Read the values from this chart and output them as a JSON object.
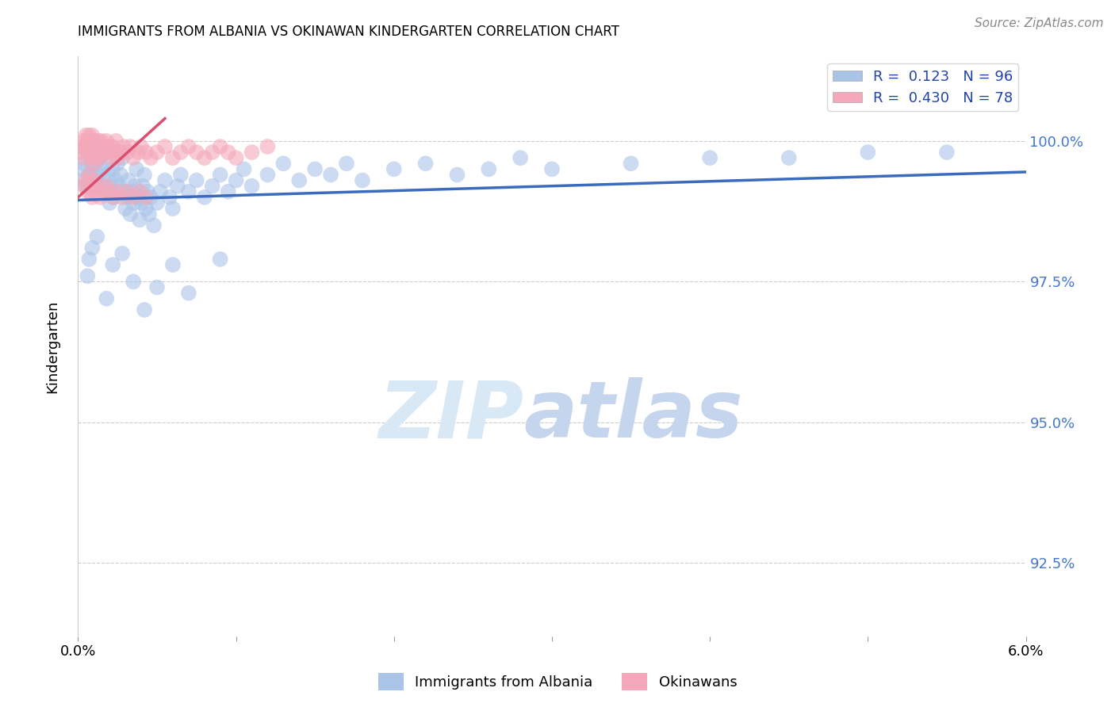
{
  "title": "IMMIGRANTS FROM ALBANIA VS OKINAWAN KINDERGARTEN CORRELATION CHART",
  "source": "Source: ZipAtlas.com",
  "ylabel": "Kindergarten",
  "y_ticks": [
    92.5,
    95.0,
    97.5,
    100.0
  ],
  "y_tick_labels": [
    "92.5%",
    "95.0%",
    "97.5%",
    "100.0%"
  ],
  "x_range": [
    0.0,
    6.0
  ],
  "y_range": [
    91.2,
    101.5
  ],
  "color_albania": "#aac4e8",
  "color_okinawa": "#f4a8ba",
  "color_line_albania": "#3a6bbf",
  "color_line_okinawa": "#d94f70",
  "watermark_zip": "ZIP",
  "watermark_atlas": "atlas",
  "watermark_color_zip": "#d5e4f5",
  "watermark_color_atlas": "#c8d8f0",
  "background_color": "#ffffff",
  "legend_label_albania": "Immigrants from Albania",
  "legend_label_okinawa": "Okinawans",
  "albania_x": [
    0.02,
    0.03,
    0.04,
    0.05,
    0.06,
    0.07,
    0.08,
    0.08,
    0.09,
    0.1,
    0.1,
    0.11,
    0.12,
    0.13,
    0.14,
    0.15,
    0.15,
    0.16,
    0.17,
    0.18,
    0.19,
    0.2,
    0.21,
    0.22,
    0.23,
    0.24,
    0.25,
    0.26,
    0.27,
    0.28,
    0.29,
    0.3,
    0.31,
    0.32,
    0.33,
    0.34,
    0.35,
    0.36,
    0.37,
    0.38,
    0.39,
    0.4,
    0.41,
    0.42,
    0.43,
    0.44,
    0.45,
    0.46,
    0.48,
    0.5,
    0.52,
    0.55,
    0.58,
    0.6,
    0.63,
    0.65,
    0.7,
    0.75,
    0.8,
    0.85,
    0.9,
    0.95,
    1.0,
    1.05,
    1.1,
    1.2,
    1.3,
    1.4,
    1.5,
    1.6,
    1.7,
    1.8,
    2.0,
    2.2,
    2.4,
    2.6,
    2.8,
    3.0,
    3.5,
    4.0,
    4.5,
    5.0,
    5.5,
    0.06,
    0.07,
    0.09,
    0.12,
    0.18,
    0.22,
    0.28,
    0.35,
    0.42,
    0.5,
    0.6,
    0.7,
    0.9
  ],
  "albania_y": [
    99.3,
    99.5,
    99.6,
    99.2,
    99.8,
    99.4,
    99.1,
    99.7,
    99.5,
    99.3,
    99.9,
    99.6,
    99.4,
    99.7,
    99.2,
    99.5,
    99.8,
    99.3,
    99.6,
    99.1,
    99.4,
    98.9,
    99.2,
    99.5,
    99.0,
    99.3,
    99.6,
    99.2,
    99.4,
    99.7,
    99.1,
    98.8,
    99.0,
    99.3,
    98.7,
    99.1,
    98.9,
    99.2,
    99.5,
    99.0,
    98.6,
    98.9,
    99.2,
    99.4,
    98.8,
    99.1,
    98.7,
    99.0,
    98.5,
    98.9,
    99.1,
    99.3,
    99.0,
    98.8,
    99.2,
    99.4,
    99.1,
    99.3,
    99.0,
    99.2,
    99.4,
    99.1,
    99.3,
    99.5,
    99.2,
    99.4,
    99.6,
    99.3,
    99.5,
    99.4,
    99.6,
    99.3,
    99.5,
    99.6,
    99.4,
    99.5,
    99.7,
    99.5,
    99.6,
    99.7,
    99.7,
    99.8,
    99.8,
    97.6,
    97.9,
    98.1,
    98.3,
    97.2,
    97.8,
    98.0,
    97.5,
    97.0,
    97.4,
    97.8,
    97.3,
    97.9
  ],
  "okinawa_x": [
    0.02,
    0.03,
    0.04,
    0.04,
    0.05,
    0.05,
    0.06,
    0.06,
    0.07,
    0.07,
    0.08,
    0.08,
    0.09,
    0.09,
    0.1,
    0.1,
    0.11,
    0.11,
    0.12,
    0.12,
    0.13,
    0.13,
    0.14,
    0.15,
    0.15,
    0.16,
    0.17,
    0.18,
    0.19,
    0.2,
    0.21,
    0.22,
    0.23,
    0.24,
    0.25,
    0.27,
    0.29,
    0.31,
    0.33,
    0.35,
    0.38,
    0.4,
    0.43,
    0.46,
    0.5,
    0.55,
    0.6,
    0.65,
    0.7,
    0.75,
    0.8,
    0.85,
    0.9,
    0.95,
    1.0,
    1.1,
    1.2,
    0.04,
    0.05,
    0.06,
    0.07,
    0.08,
    0.09,
    0.1,
    0.11,
    0.12,
    0.14,
    0.16,
    0.18,
    0.2,
    0.22,
    0.25,
    0.28,
    0.31,
    0.35,
    0.39,
    0.43
  ],
  "okinawa_y": [
    99.8,
    99.9,
    100.0,
    99.7,
    99.9,
    100.1,
    99.8,
    100.0,
    99.9,
    100.1,
    99.7,
    100.0,
    99.8,
    100.1,
    99.6,
    99.9,
    99.8,
    100.0,
    99.7,
    99.9,
    99.8,
    100.0,
    99.7,
    99.9,
    100.0,
    99.8,
    99.9,
    100.0,
    99.8,
    99.9,
    99.7,
    99.9,
    99.8,
    100.0,
    99.7,
    99.8,
    99.9,
    99.8,
    99.9,
    99.7,
    99.8,
    99.9,
    99.8,
    99.7,
    99.8,
    99.9,
    99.7,
    99.8,
    99.9,
    99.8,
    99.7,
    99.8,
    99.9,
    99.8,
    99.7,
    99.8,
    99.9,
    99.2,
    99.3,
    99.1,
    99.4,
    99.2,
    99.0,
    99.3,
    99.1,
    99.2,
    99.0,
    99.1,
    99.2,
    99.1,
    99.0,
    99.1,
    99.0,
    99.1,
    99.0,
    99.1,
    99.0
  ]
}
